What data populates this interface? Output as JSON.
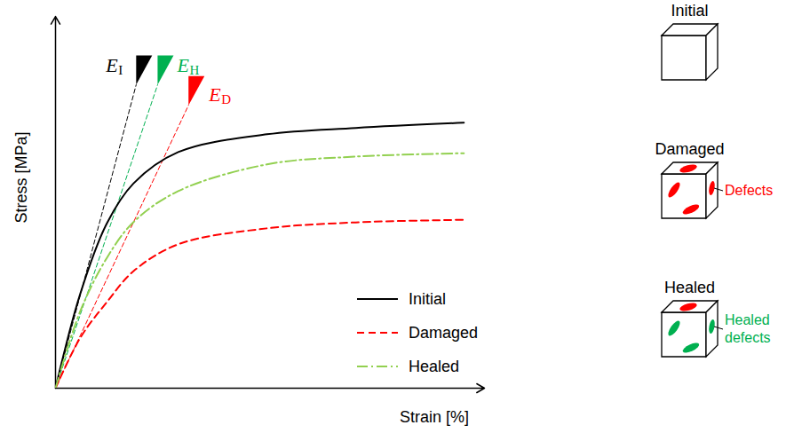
{
  "chart_data": {
    "type": "line",
    "xlabel": "Strain [%]",
    "ylabel": "Stress [MPa]",
    "xlim": [
      0,
      100
    ],
    "ylim": [
      0,
      100
    ],
    "tick_labels": false,
    "legend": "lower right",
    "x": [
      0,
      5.8,
      12,
      18.2,
      28.6,
      49.3,
      70,
      95.2
    ],
    "series": [
      {
        "name": "Initial",
        "color": "#000000",
        "line_style": "solid",
        "values": [
          0,
          25.5,
          44.4,
          55.1,
          63.5,
          68.3,
          70,
          71.4
        ],
        "modulus": {
          "symbol": "E",
          "subscript": "I",
          "color": "#000000",
          "x": [
            0,
            18.8
          ],
          "y": [
            0,
            81.6
          ]
        }
      },
      {
        "name": "Damaged",
        "color": "#ff0000",
        "line_style": "dashed",
        "values": [
          0,
          13.6,
          23.2,
          31.5,
          38.7,
          43,
          44.6,
          45.3
        ],
        "modulus": {
          "symbol": "E",
          "subscript": "D",
          "color": "#ff0000",
          "x": [
            0,
            31
          ],
          "y": [
            0,
            76.1
          ]
        }
      },
      {
        "name": "Healed",
        "color": "#92d050",
        "line_style": "dashdot",
        "values": [
          0,
          20.8,
          35.1,
          44.7,
          53,
          60.2,
          62.3,
          63.2
        ],
        "modulus": {
          "symbol": "E",
          "subscript": "H",
          "color": "#00b050",
          "x": [
            0,
            23.8
          ],
          "y": [
            0,
            81.6
          ]
        }
      }
    ]
  },
  "illustrations": [
    {
      "title": "Initial",
      "colors": []
    },
    {
      "title": "Damaged",
      "annotation": "Defects",
      "color": "#ff0000",
      "colors": [
        "#ff0000",
        "#ff0000",
        "#ff0000",
        "#ff0000"
      ]
    },
    {
      "title": "Healed",
      "annotation": "Healed defects",
      "color": "#00b050",
      "colors": [
        "#ff0000",
        "#00b050",
        "#00b050",
        "#00b050"
      ]
    }
  ]
}
